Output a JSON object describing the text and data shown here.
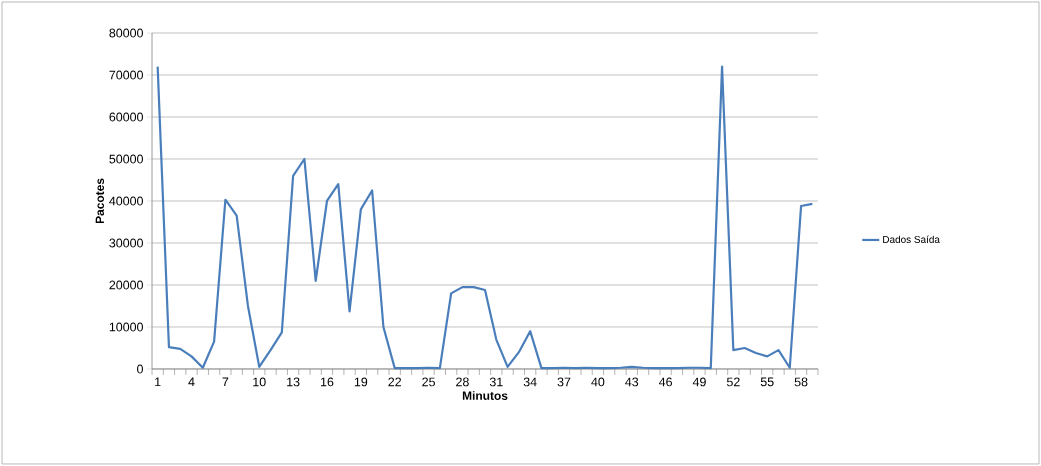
{
  "chart_data": {
    "type": "line",
    "xlabel": "Minutos",
    "ylabel": "Pacotes",
    "categories": [
      "1",
      null,
      null,
      "4",
      null,
      null,
      "7",
      null,
      null,
      "10",
      null,
      null,
      "13",
      null,
      null,
      "16",
      null,
      null,
      "19",
      null,
      null,
      "22",
      null,
      null,
      "25",
      null,
      null,
      "28",
      null,
      null,
      "31",
      null,
      null,
      "34",
      null,
      null,
      "37",
      null,
      null,
      "40",
      null,
      null,
      "43",
      null,
      null,
      "46",
      null,
      null,
      "49",
      null,
      null,
      "52",
      null,
      null,
      "55",
      null,
      null,
      "58",
      null
    ],
    "series": [
      {
        "name": "Dados Saída",
        "color": "#4a7ebb",
        "values": [
          72000,
          5200,
          4800,
          3000,
          300,
          6500,
          40300,
          36500,
          15000,
          500,
          4500,
          8700,
          46000,
          50000,
          21000,
          40000,
          44000,
          13700,
          38000,
          42500,
          10000,
          200,
          200,
          200,
          300,
          200,
          18000,
          19500,
          19500,
          18800,
          7000,
          500,
          4000,
          9000,
          200,
          200,
          300,
          200,
          300,
          200,
          200,
          300,
          500,
          300,
          200,
          200,
          200,
          300,
          300,
          200,
          72000,
          4500,
          5000,
          3800,
          3000,
          4500,
          300,
          38800,
          39300
        ]
      }
    ],
    "ylim": [
      0,
      80000
    ],
    "yticks": [
      0,
      10000,
      20000,
      30000,
      40000,
      50000,
      60000,
      70000,
      80000
    ],
    "grid": "y",
    "legend": "right"
  }
}
